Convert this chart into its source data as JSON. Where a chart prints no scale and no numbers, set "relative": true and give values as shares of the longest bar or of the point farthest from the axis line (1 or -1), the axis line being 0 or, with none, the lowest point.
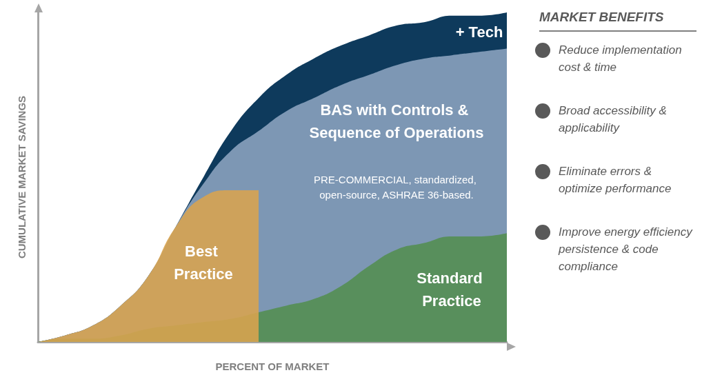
{
  "chart_data": {
    "type": "area",
    "relative": true,
    "xlabel": "PERCENT OF MARKET",
    "ylabel": "CUMULATIVE MARKET SAVINGS",
    "categories": [
      null,
      null,
      null,
      null,
      null,
      null,
      null,
      null,
      null,
      null,
      null,
      null,
      null,
      null,
      null,
      null,
      null,
      null
    ],
    "series": [
      {
        "name": "+ Tech",
        "color": "#0e3a5c",
        "values": [
          0,
          0.02,
          0.05,
          0.11,
          0.2,
          0.35,
          0.5,
          0.64,
          0.74,
          0.81,
          0.86,
          0.9,
          0.93,
          0.96,
          0.97,
          0.99,
          0.99,
          1
        ]
      },
      {
        "name": "BAS with Controls & Sequence of Operations",
        "color": "#7d97b4",
        "values": [
          0,
          0.02,
          0.05,
          0.11,
          0.2,
          0.35,
          0.48,
          0.58,
          0.64,
          0.7,
          0.74,
          0.78,
          0.81,
          0.84,
          0.86,
          0.87,
          0.88,
          0.89
        ]
      },
      {
        "name": "Standard Practice",
        "color": "#588f5c",
        "values": [
          0,
          0.01,
          0.01,
          0.02,
          0.04,
          0.05,
          0.06,
          0.07,
          0.09,
          0.11,
          0.13,
          0.17,
          0.23,
          0.28,
          0.3,
          0.32,
          0.32,
          0.33
        ]
      },
      {
        "name": "Best Practice",
        "color": "#d9a44e",
        "values": [
          0,
          0.02,
          0.05,
          0.11,
          0.2,
          0.35,
          0.44,
          0.46,
          0.46,
          null,
          null,
          null,
          null,
          null,
          null,
          null,
          null,
          null
        ]
      }
    ],
    "annotations": [
      "PRE-COMMERCIAL, standardized, open-source, ASHRAE 36-based.",
      "MARKET BENEFITS",
      "Reduce implementation cost & time",
      "Broad accessibility & applicability",
      "Eliminate errors & optimize performance",
      "Improve energy efficiency persistence & code compliance"
    ]
  }
}
